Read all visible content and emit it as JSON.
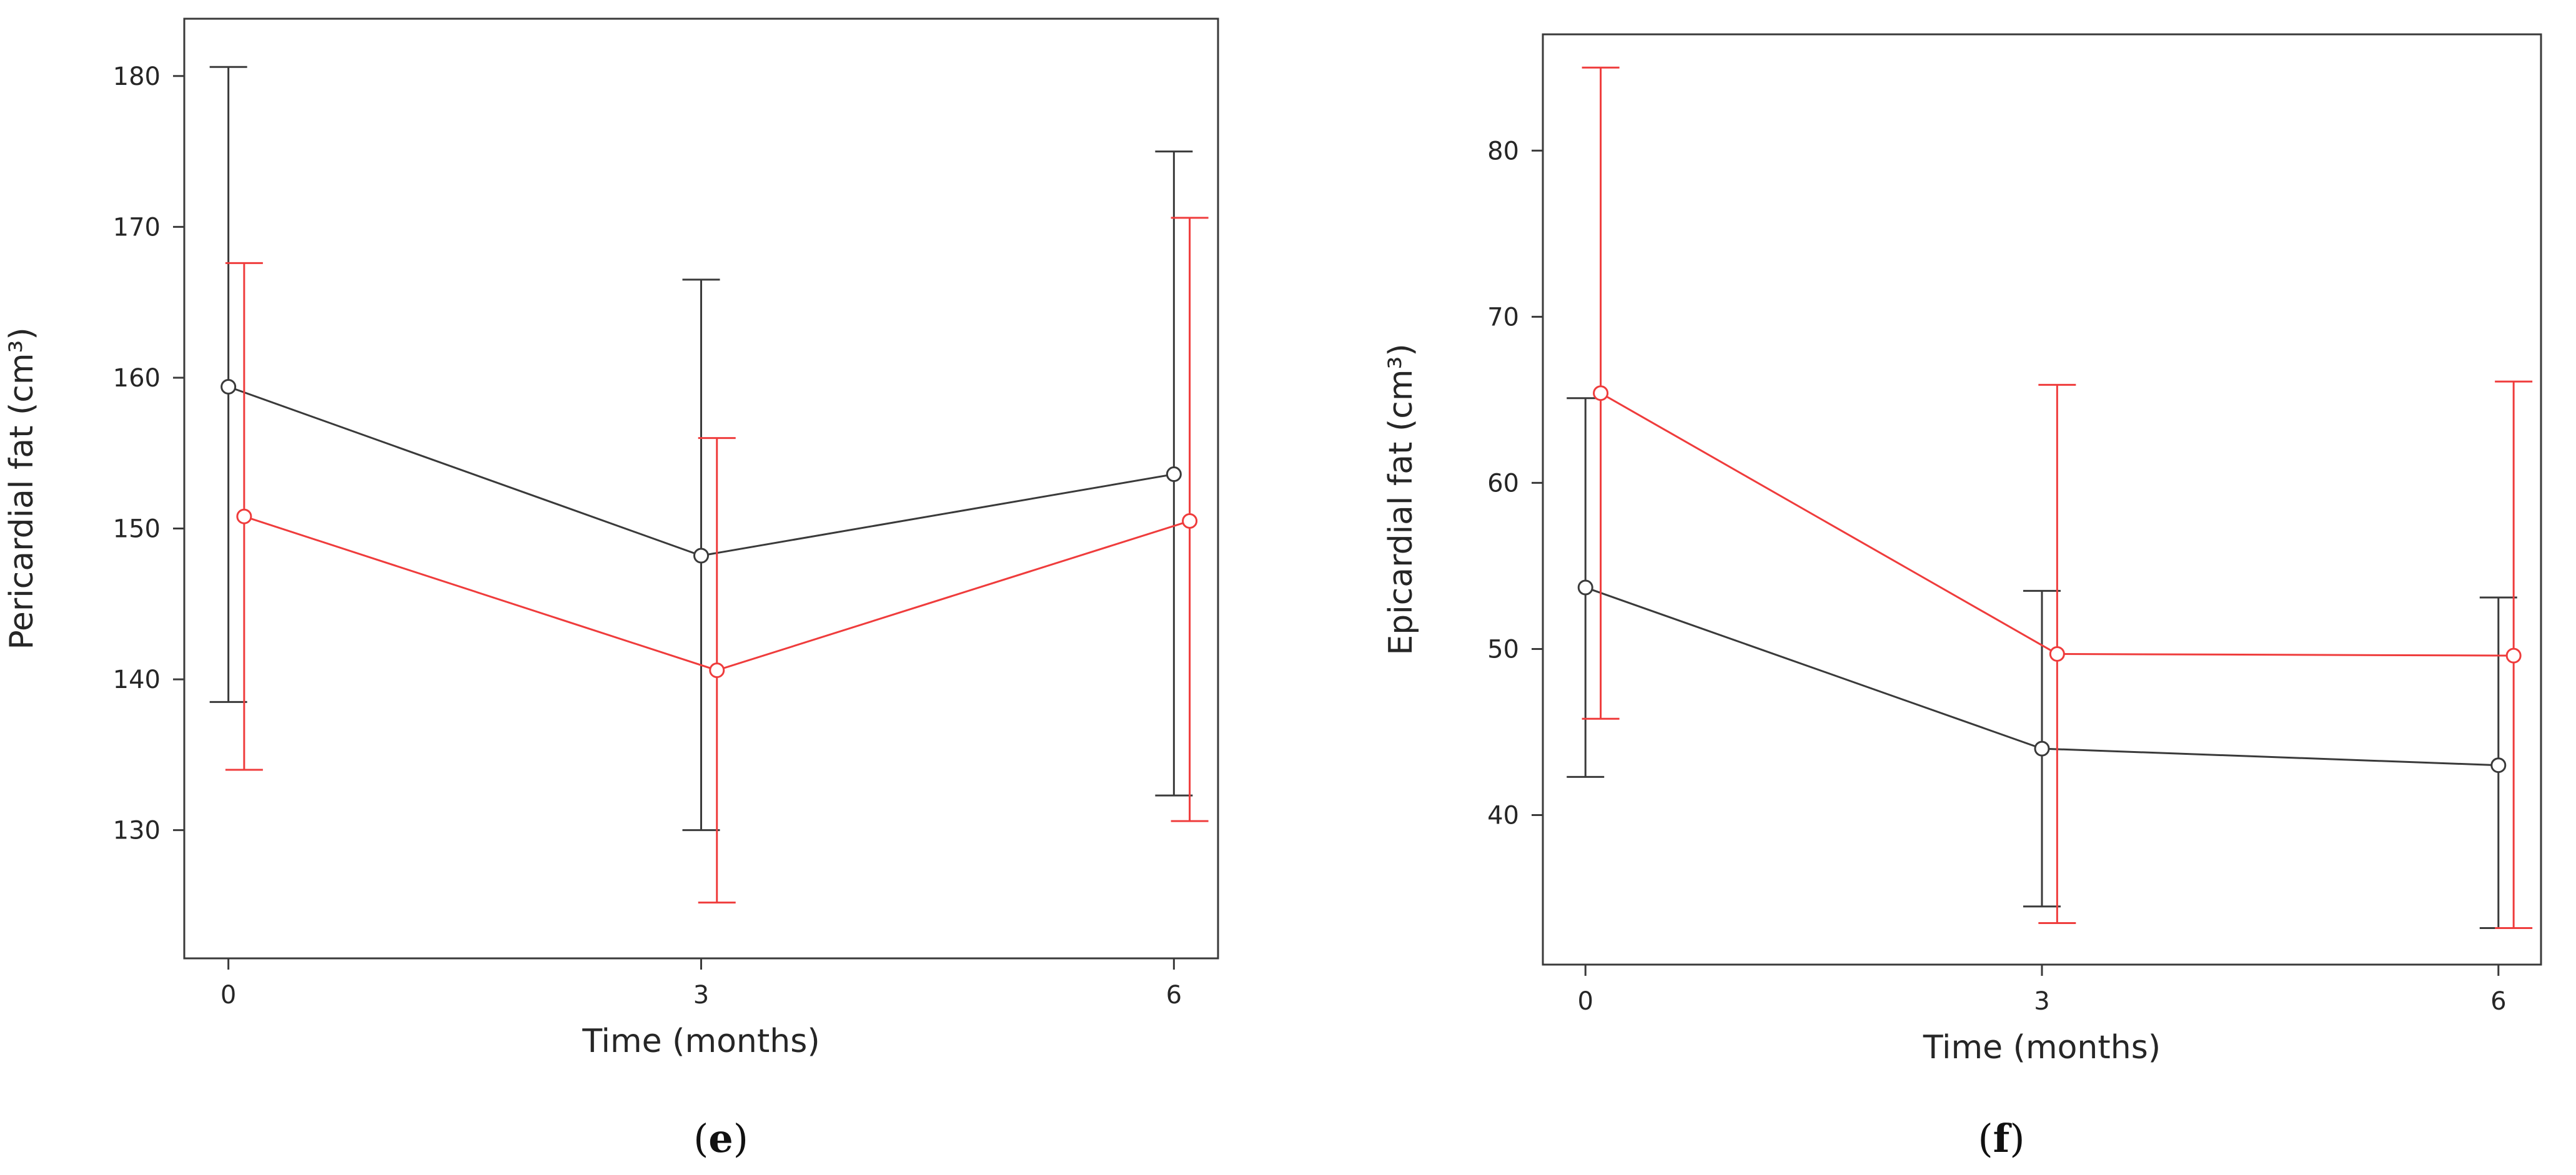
{
  "colors": {
    "black_series": "#3a3a3a",
    "red_series": "#ef3c3c",
    "frame": "#3a3a3a"
  },
  "chart_data": [
    {
      "type": "line",
      "panel": "e",
      "panel_open": "(",
      "panel_close": ")",
      "xlabel": "Time (months)",
      "ylabel": "Pericardial fat (cm³)",
      "x_ticks": [
        0,
        3,
        6
      ],
      "y_ticks": [
        130,
        140,
        150,
        160,
        170,
        180
      ],
      "xlim": [
        -0.28,
        6.28
      ],
      "ylim": [
        121.5,
        183.8
      ],
      "series": [
        {
          "color": "#3a3a3a",
          "x": [
            0,
            3,
            6
          ],
          "y": [
            159.4,
            148.2,
            153.6
          ],
          "err_low": [
            138.5,
            130.0,
            132.3
          ],
          "err_high": [
            180.6,
            166.5,
            175.0
          ]
        },
        {
          "color": "#ef3c3c",
          "x": [
            0.1,
            3.1,
            6.1
          ],
          "y": [
            150.8,
            140.6,
            150.5
          ],
          "err_low": [
            134.0,
            125.2,
            130.6
          ],
          "err_high": [
            167.6,
            156.0,
            170.6
          ]
        }
      ]
    },
    {
      "type": "line",
      "panel": "f",
      "panel_open": "(",
      "panel_close": ")",
      "xlabel": "Time (months)",
      "ylabel": "Epicardial fat (cm³)",
      "x_ticks": [
        0,
        3,
        6
      ],
      "y_ticks": [
        40,
        50,
        60,
        70,
        80
      ],
      "xlim": [
        -0.28,
        6.28
      ],
      "ylim": [
        31.0,
        87.0
      ],
      "series": [
        {
          "color": "#3a3a3a",
          "x": [
            0,
            3,
            6
          ],
          "y": [
            53.7,
            44.0,
            43.0
          ],
          "err_low": [
            42.3,
            34.5,
            33.2
          ],
          "err_high": [
            65.1,
            53.5,
            53.1
          ]
        },
        {
          "color": "#ef3c3c",
          "x": [
            0.1,
            3.1,
            6.1
          ],
          "y": [
            65.4,
            49.7,
            49.6
          ],
          "err_low": [
            45.8,
            33.5,
            33.2
          ],
          "err_high": [
            85.0,
            65.9,
            66.1
          ]
        }
      ]
    }
  ]
}
